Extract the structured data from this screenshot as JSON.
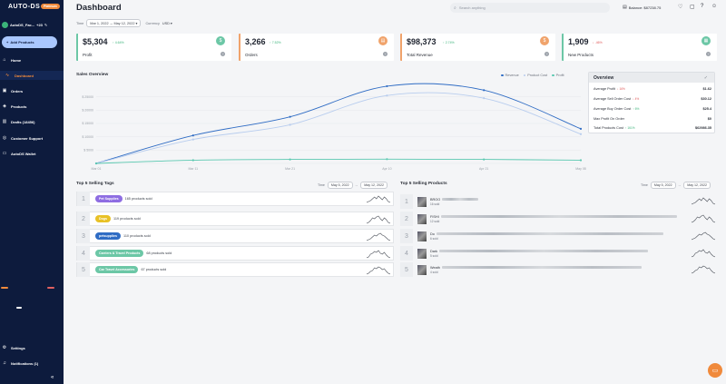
{
  "colors": {
    "sidebar_bg": "#0d1b3d",
    "accent_orange": "#f08a3c",
    "profit": "#6cc7a6",
    "orders": "#f0a36b",
    "revenue": "#f0a36b",
    "new_products": "#6cc7a6",
    "line_revenue": "#2f6cc4",
    "line_cost": "#b8cdee",
    "line_profit": "#5ac8b0"
  },
  "sidebar": {
    "logo": "AUTO-DS",
    "badge": "Platinum",
    "store_name": "AutoDS_Fac...",
    "store_count": "+23",
    "add_button": "Add Products",
    "items": [
      {
        "label": "Home",
        "icon": "home-icon"
      },
      {
        "label": "Dashboard",
        "icon": "chart-line-icon"
      },
      {
        "label": "Orders",
        "icon": "orders-icon"
      },
      {
        "label": "Products",
        "icon": "box-icon"
      },
      {
        "label": "Drafts (18456)",
        "icon": "drafts-icon"
      },
      {
        "label": "Customer Support",
        "icon": "support-icon"
      },
      {
        "label": "AutoDS Wallet",
        "icon": "wallet-icon"
      },
      {
        "label": "Settings",
        "icon": "gear-icon"
      },
      {
        "label": "Notifications (1)",
        "icon": "bell-icon"
      }
    ],
    "collapse": "«"
  },
  "header": {
    "title": "Dashboard",
    "search_placeholder": "Search anything",
    "balance": "Balance: $87238.75"
  },
  "filters": {
    "time_label": "Time",
    "time_value": "Mar 1, 2022 → May 12, 2022 ▾",
    "currency_label": "Currency",
    "currency_value": "USD ▾"
  },
  "kpis": [
    {
      "value": "$5,304",
      "change": "↑ 4.64%",
      "label": "Profit",
      "icon": "$"
    },
    {
      "value": "3,266",
      "change": "↑ 7.52%",
      "label": "Orders",
      "icon": "▤"
    },
    {
      "value": "$98,373",
      "change": "↑ 2.74%",
      "label": "Total Revenue",
      "icon": "$"
    },
    {
      "value": "1,909",
      "change": "↓ .46%",
      "label": "New Products",
      "icon": "▦"
    }
  ],
  "chart_data": {
    "type": "line",
    "title": "Sales Overview",
    "categories": [
      "Mar 01",
      "Mar 11",
      "Mar 21",
      "Apr 10",
      "Apr 21",
      "May 08"
    ],
    "y_tick_labels": [
      "",
      "$ 5000",
      "$ 10000",
      "$ 15000",
      "$ 20000",
      "$ 25000"
    ],
    "ylim": [
      0,
      25000
    ],
    "series": [
      {
        "name": "Revenue",
        "values": [
          0,
          10500,
          17500,
          29000,
          27500,
          13000
        ]
      },
      {
        "name": "Product Cost",
        "values": [
          0,
          9000,
          14500,
          25500,
          24500,
          11000
        ]
      },
      {
        "name": "Profit",
        "values": [
          0,
          1200,
          1500,
          1600,
          1500,
          1200
        ]
      }
    ],
    "grid": true,
    "legend_position": "top-right"
  },
  "summary": {
    "title": "Overview",
    "rows": [
      {
        "label": "Average Profit",
        "change": "↓ 16%",
        "value": "$1.62",
        "neg": true
      },
      {
        "label": "Average Sell Order Cost",
        "change": "↓ 4%",
        "value": "$30.12",
        "neg": true
      },
      {
        "label": "Average Buy Order Cost",
        "change": "↑ 6%",
        "value": "$25.4",
        "neg": false
      },
      {
        "label": "Max Profit On Order",
        "change": "",
        "value": "$0",
        "neg": false
      },
      {
        "label": "Total Products Cost",
        "change": "↑ 161%",
        "value": "$62986.35",
        "neg": false
      }
    ]
  },
  "top_tags": {
    "title": "Top 5 Selling Tags",
    "time_label": "Time",
    "from": "May 5, 2022",
    "to": "May 12, 2022",
    "rows": [
      {
        "rank": "1",
        "tag": "Pet Supplies",
        "color": "#8e6de2",
        "sold": "165 products sold"
      },
      {
        "rank": "2",
        "tag": "Dogs",
        "color": "#e8c126",
        "sold": "119 products sold"
      },
      {
        "rank": "3",
        "tag": "petsupplies",
        "color": "#2f6cc4",
        "sold": "110 products sold"
      },
      {
        "rank": "4",
        "tag": "Carriers & Travel Products",
        "color": "#6cc7a6",
        "sold": "68 products sold"
      },
      {
        "rank": "5",
        "tag": "Car Travel Accessories",
        "color": "#6cc7a6",
        "sold": "67 products sold"
      }
    ]
  },
  "top_products": {
    "title": "Top 5 Selling Products",
    "time_label": "Time",
    "from": "May 5, 2022",
    "to": "May 12, 2022",
    "rows": [
      {
        "rank": "1",
        "name": "BROO",
        "sold": "16 sold"
      },
      {
        "rank": "2",
        "name": "FISHI",
        "sold": "12 sold"
      },
      {
        "rank": "3",
        "name": "Do",
        "sold": "6 sold"
      },
      {
        "rank": "4",
        "name": "Dark",
        "sold": "5 sold"
      },
      {
        "rank": "5",
        "name": "Weath",
        "sold": "4 sold"
      }
    ]
  }
}
